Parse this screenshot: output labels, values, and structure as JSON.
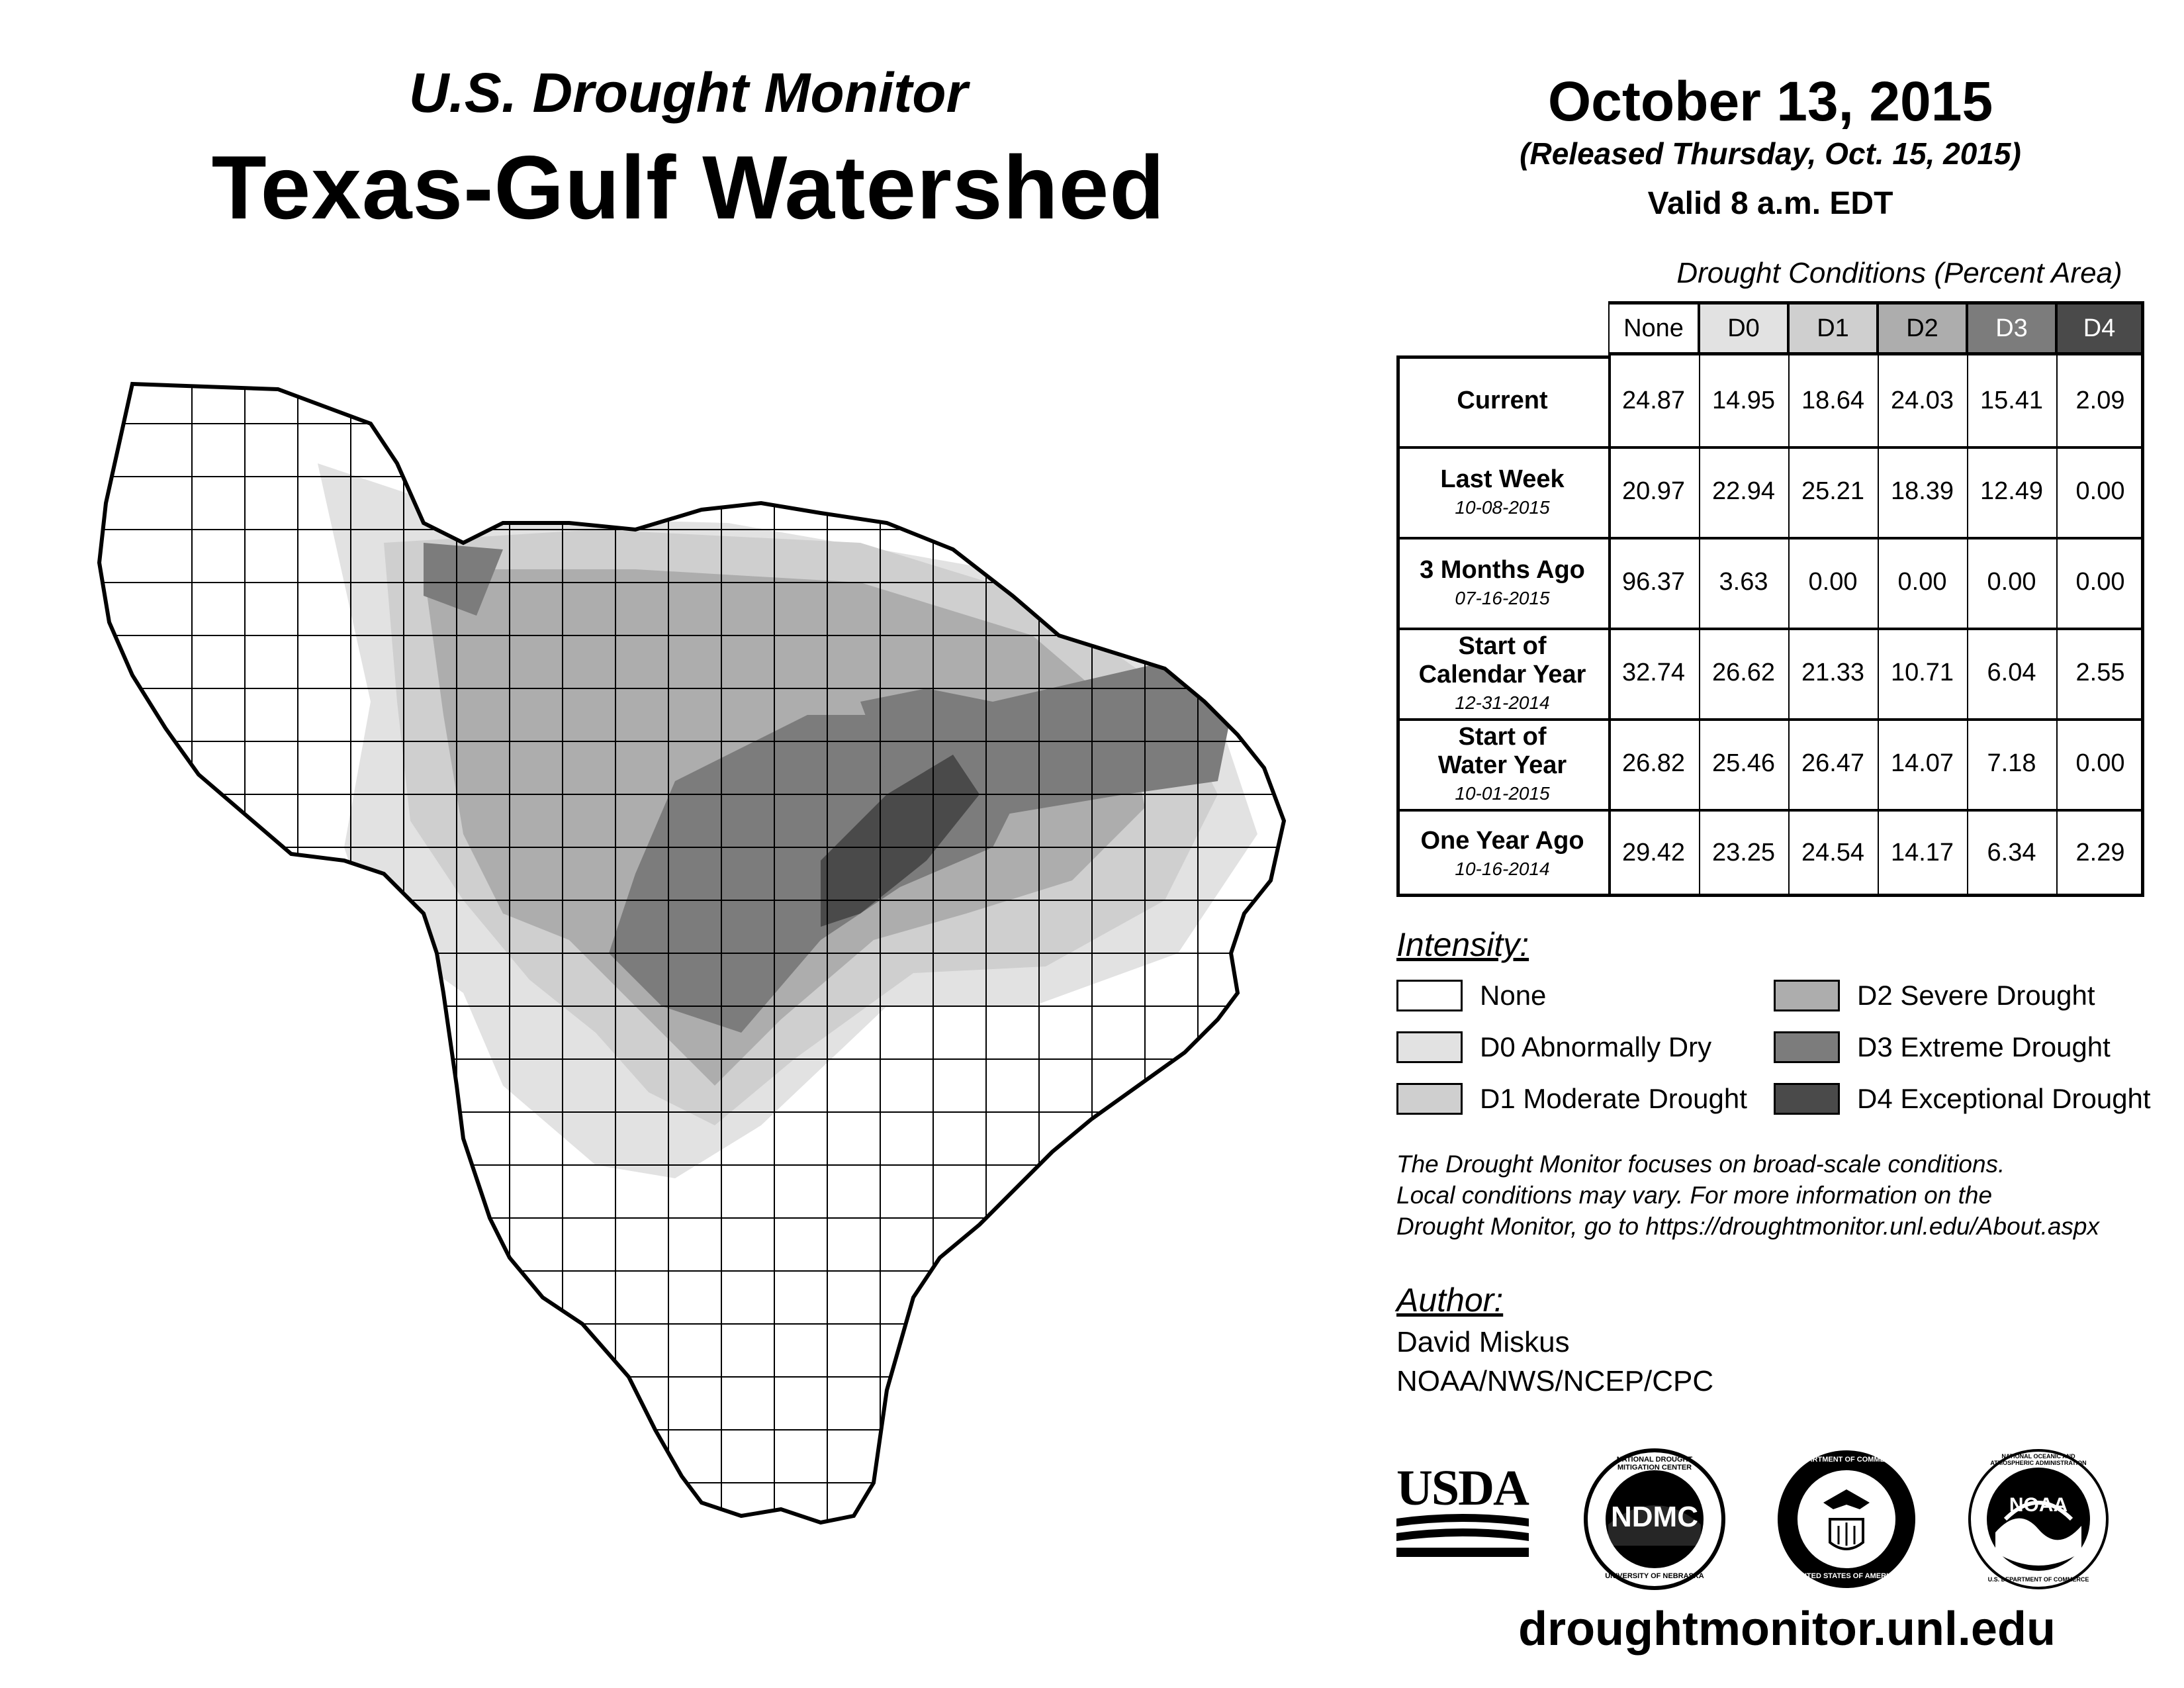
{
  "header": {
    "subtitle": "U.S. Drought Monitor",
    "title": "Texas-Gulf Watershed",
    "date": "October 13, 2015",
    "released": "(Released Thursday, Oct. 15, 2015)",
    "valid": "Valid 8 a.m. EDT"
  },
  "table": {
    "caption": "Drought Conditions (Percent Area)",
    "columns": [
      "None",
      "D0",
      "D1",
      "D2",
      "D3",
      "D4"
    ],
    "column_colors": [
      "#ffffff",
      "#e2e2e2",
      "#cfcfcf",
      "#adadad",
      "#7c7c7c",
      "#4a4a4a"
    ],
    "rows": [
      {
        "label": "Current",
        "sublabel": "",
        "values": [
          "24.87",
          "14.95",
          "18.64",
          "24.03",
          "15.41",
          "2.09"
        ]
      },
      {
        "label": "Last Week",
        "sublabel": "10-08-2015",
        "values": [
          "20.97",
          "22.94",
          "25.21",
          "18.39",
          "12.49",
          "0.00"
        ]
      },
      {
        "label": "3 Months Ago",
        "sublabel": "07-16-2015",
        "values": [
          "96.37",
          "3.63",
          "0.00",
          "0.00",
          "0.00",
          "0.00"
        ]
      },
      {
        "label": "Start of Calendar Year",
        "sublabel": "12-31-2014",
        "values": [
          "32.74",
          "26.62",
          "21.33",
          "10.71",
          "6.04",
          "2.55"
        ]
      },
      {
        "label": "Start of Water Year",
        "sublabel": "10-01-2015",
        "values": [
          "26.82",
          "25.46",
          "26.47",
          "14.07",
          "7.18",
          "0.00"
        ]
      },
      {
        "label": "One Year Ago",
        "sublabel": "10-16-2014",
        "values": [
          "29.42",
          "23.25",
          "24.54",
          "14.17",
          "6.34",
          "2.29"
        ]
      }
    ]
  },
  "legend": {
    "title": "Intensity:",
    "items": [
      {
        "label": "None",
        "color": "#ffffff"
      },
      {
        "label": "D0 Abnormally Dry",
        "color": "#e2e2e2"
      },
      {
        "label": "D1 Moderate Drought",
        "color": "#cfcfcf"
      },
      {
        "label": "D2 Severe Drought",
        "color": "#adadad"
      },
      {
        "label": "D3 Extreme Drought",
        "color": "#7c7c7c"
      },
      {
        "label": "D4 Exceptional Drought",
        "color": "#4a4a4a"
      }
    ]
  },
  "note": {
    "line1": "The Drought Monitor focuses on broad-scale conditions.",
    "line2": "Local conditions may vary. For more information on the",
    "line3": "Drought Monitor, go to https://droughtmonitor.unl.edu/About.aspx"
  },
  "author": {
    "heading": "Author:",
    "name": "David Miskus",
    "org": "NOAA/NWS/NCEP/CPC"
  },
  "logos": {
    "usda": "USDA",
    "ndmc": "NDMC",
    "ndmc_ring_top": "NATIONAL DROUGHT MITIGATION CENTER",
    "ndmc_ring_bottom": "UNIVERSITY OF NEBRASKA",
    "doc_ring_top": "DEPARTMENT OF COMMERCE",
    "doc_ring_bottom": "UNITED STATES OF AMERICA",
    "noaa": "NOAA",
    "noaa_ring_top": "NATIONAL OCEANIC AND ATMOSPHERIC ADMINISTRATION",
    "noaa_ring_bottom": "U.S. DEPARTMENT OF COMMERCE"
  },
  "footer": {
    "url": "droughtmonitor.unl.edu"
  }
}
